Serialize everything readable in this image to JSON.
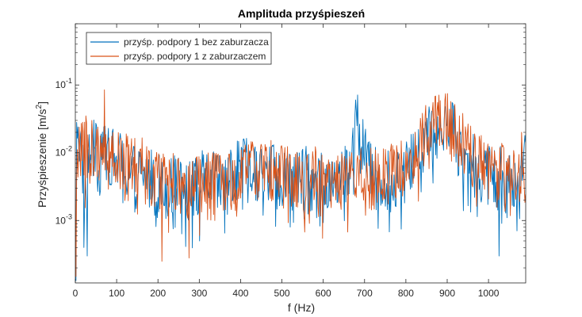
{
  "chart_data": {
    "type": "line",
    "title": "Amplituda przyśpieszeń",
    "xlabel": "f (Hz)",
    "ylabel": "Przyśpieszenie [m/s",
    "ylabel_sup": "2",
    "ylabel_close": "]",
    "x_range": [
      0,
      1090
    ],
    "y_log": true,
    "y_range": [
      0.00012,
      0.8
    ],
    "x_ticks": [
      {
        "value": 0,
        "label": "0"
      },
      {
        "value": 100,
        "label": "100"
      },
      {
        "value": 200,
        "label": "200"
      },
      {
        "value": 300,
        "label": "300"
      },
      {
        "value": 400,
        "label": "400"
      },
      {
        "value": 500,
        "label": "500"
      },
      {
        "value": 600,
        "label": "600"
      },
      {
        "value": 700,
        "label": "700"
      },
      {
        "value": 800,
        "label": "800"
      },
      {
        "value": 900,
        "label": "900"
      },
      {
        "value": 1000,
        "label": "1000"
      }
    ],
    "y_ticks": [
      {
        "value": 0.1,
        "base": "10",
        "exp": "-1"
      },
      {
        "value": 0.01,
        "base": "10",
        "exp": "-2"
      },
      {
        "value": 0.001,
        "base": "10",
        "exp": "-3"
      }
    ],
    "legend_position": "top-left",
    "series": [
      {
        "name": "przyśp. podpory 1 bez zaburzacza",
        "color": "#0072BD",
        "anchors": [
          [
            0,
            0.002
          ],
          [
            5,
            0.025
          ],
          [
            15,
            0.008
          ],
          [
            25,
            0.003
          ],
          [
            40,
            0.012
          ],
          [
            60,
            0.008
          ],
          [
            80,
            0.01
          ],
          [
            100,
            0.007
          ],
          [
            130,
            0.005
          ],
          [
            160,
            0.005
          ],
          [
            200,
            0.003
          ],
          [
            240,
            0.003
          ],
          [
            280,
            0.0025
          ],
          [
            320,
            0.004
          ],
          [
            350,
            0.003
          ],
          [
            380,
            0.004
          ],
          [
            410,
            0.006
          ],
          [
            440,
            0.005
          ],
          [
            480,
            0.005
          ],
          [
            520,
            0.004
          ],
          [
            560,
            0.004
          ],
          [
            600,
            0.003
          ],
          [
            640,
            0.004
          ],
          [
            660,
            0.005
          ],
          [
            675,
            0.012
          ],
          [
            680,
            0.04
          ],
          [
            690,
            0.015
          ],
          [
            720,
            0.004
          ],
          [
            760,
            0.004
          ],
          [
            800,
            0.005
          ],
          [
            830,
            0.01
          ],
          [
            860,
            0.02
          ],
          [
            880,
            0.025
          ],
          [
            900,
            0.035
          ],
          [
            915,
            0.02
          ],
          [
            940,
            0.008
          ],
          [
            980,
            0.005
          ],
          [
            1020,
            0.004
          ],
          [
            1060,
            0.004
          ],
          [
            1090,
            0.006
          ]
        ],
        "spikes": [
          [
            3,
            0.028
          ],
          [
            6,
            0.024
          ],
          [
            28,
            0.0003
          ],
          [
            20,
            0.0004
          ],
          [
            300,
            0.0005
          ],
          [
            520,
            0.0008
          ],
          [
            1025,
            0.0003
          ],
          [
            680,
            0.042
          ],
          [
            905,
            0.044
          ],
          [
            1088,
            0.018
          ],
          [
            1,
            0.00013
          ]
        ]
      },
      {
        "name": "przyśp. podpory 1 z zaburzaczem",
        "color": "#D95319",
        "anchors": [
          [
            0,
            0.003
          ],
          [
            10,
            0.012
          ],
          [
            25,
            0.01
          ],
          [
            45,
            0.008
          ],
          [
            70,
            0.015
          ],
          [
            90,
            0.009
          ],
          [
            110,
            0.008
          ],
          [
            140,
            0.006
          ],
          [
            170,
            0.006
          ],
          [
            200,
            0.004
          ],
          [
            240,
            0.003
          ],
          [
            280,
            0.003
          ],
          [
            320,
            0.004
          ],
          [
            360,
            0.003
          ],
          [
            400,
            0.004
          ],
          [
            430,
            0.006
          ],
          [
            460,
            0.005
          ],
          [
            500,
            0.005
          ],
          [
            540,
            0.004
          ],
          [
            580,
            0.004
          ],
          [
            620,
            0.003
          ],
          [
            660,
            0.004
          ],
          [
            700,
            0.004
          ],
          [
            740,
            0.004
          ],
          [
            780,
            0.005
          ],
          [
            810,
            0.007
          ],
          [
            840,
            0.015
          ],
          [
            860,
            0.03
          ],
          [
            880,
            0.035
          ],
          [
            900,
            0.03
          ],
          [
            920,
            0.02
          ],
          [
            950,
            0.01
          ],
          [
            990,
            0.006
          ],
          [
            1030,
            0.005
          ],
          [
            1060,
            0.004
          ],
          [
            1090,
            0.005
          ]
        ],
        "spikes": [
          [
            70,
            0.085
          ],
          [
            25,
            0.035
          ],
          [
            40,
            0.03
          ],
          [
            210,
            0.00025
          ],
          [
            275,
            0.00028
          ],
          [
            300,
            0.0006
          ],
          [
            870,
            0.068
          ],
          [
            895,
            0.06
          ],
          [
            930,
            0.035
          ],
          [
            1080,
            0.02
          ],
          [
            1,
            0.00015
          ]
        ]
      }
    ]
  }
}
